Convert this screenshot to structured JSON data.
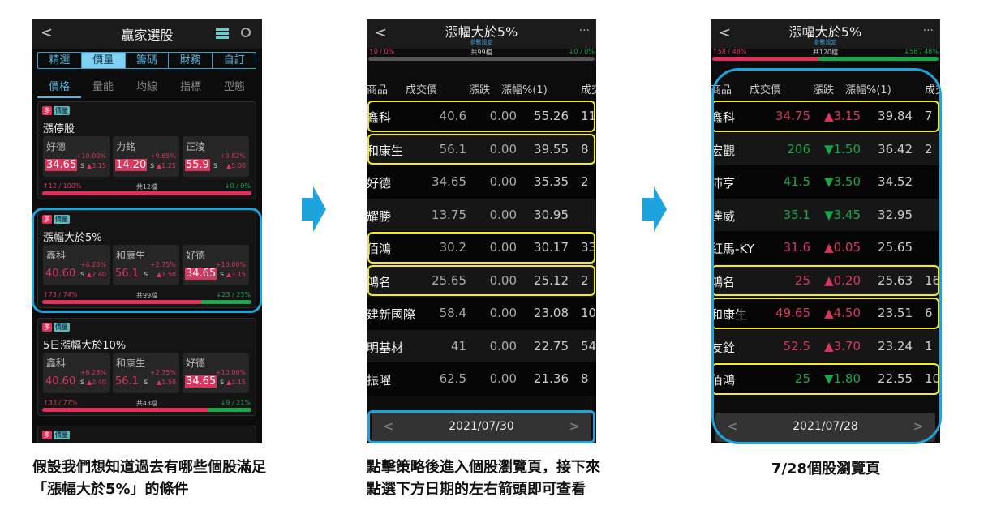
{
  "colors": {
    "up": "#d8365f",
    "down": "#1aa64a",
    "accent": "#3aa0c8",
    "highlight": "#f4ea1c",
    "annotation": "#1ea4dc"
  },
  "phone1": {
    "title": "贏家選股",
    "back": "<",
    "menu_icon": "list-icon",
    "search_icon": "search-icon",
    "tabs": [
      "精選",
      "價量",
      "籌碼",
      "財務",
      "自訂"
    ],
    "active_tab": 1,
    "subtabs": [
      "價格",
      "量能",
      "均線",
      "指標",
      "型態"
    ],
    "active_subtab": 0,
    "cards": [
      {
        "badge1": "多",
        "badge2": "價量",
        "title": "漲停股",
        "stocks": [
          {
            "name": "好德",
            "price": "34.65",
            "suffix": "s",
            "pct": "+10.00%",
            "chg": "▲3.15",
            "hl": true
          },
          {
            "name": "力銘",
            "price": "14.20",
            "suffix": "s",
            "pct": "+9.65%",
            "chg": "▲1.25",
            "hl": true
          },
          {
            "name": "正淩",
            "price": "55.9",
            "suffix": "s",
            "pct": "+9.82%",
            "chg": "▲5.00",
            "hl": true
          }
        ],
        "up": "↑12 / 100%",
        "total": "共12檔",
        "down": "↓0 / 0%",
        "up_ratio": 1.0
      },
      {
        "badge1": "多",
        "badge2": "價量",
        "title": "漲幅大於5%",
        "stocks": [
          {
            "name": "鑫科",
            "price": "40.60",
            "suffix": "s",
            "pct": "+6.28%",
            "chg": "▲2.40",
            "hl": false
          },
          {
            "name": "和康生",
            "price": "56.1",
            "suffix": "s",
            "pct": "+2.75%",
            "chg": "▲1.50",
            "hl": false
          },
          {
            "name": "好德",
            "price": "34.65",
            "suffix": "s",
            "pct": "+10.00%",
            "chg": "▲3.15",
            "hl": true
          }
        ],
        "up": "↑73 / 74%",
        "total": "共99檔",
        "down": "↓23 / 23%",
        "up_ratio": 0.74
      },
      {
        "badge1": "多",
        "badge2": "價量",
        "title": "5日漲幅大於10%",
        "stocks": [
          {
            "name": "鑫科",
            "price": "40.60",
            "suffix": "s",
            "pct": "+6.28%",
            "chg": "▲2.40",
            "hl": false
          },
          {
            "name": "和康生",
            "price": "56.1",
            "suffix": "s",
            "pct": "+2.75%",
            "chg": "▲1.50",
            "hl": false
          },
          {
            "name": "好德",
            "price": "34.65",
            "suffix": "s",
            "pct": "+10.00%",
            "chg": "▲3.15",
            "hl": true
          }
        ],
        "up": "↑33 / 77%",
        "total": "共43檔",
        "down": "↓9 / 21%",
        "up_ratio": 0.77
      },
      {
        "badge1": "多",
        "badge2": "價量"
      }
    ]
  },
  "phone2": {
    "title": "漲幅大於5%",
    "back": "<",
    "more": "···",
    "subtitle": "參數設定",
    "up": "↑0 / 0%",
    "total": "共99檔",
    "down": "↓0 / 0%",
    "columns": [
      "商品",
      "成交價",
      "漲跌",
      "漲幅%(1)",
      "成交"
    ],
    "rows": [
      {
        "name": "鑫科",
        "price": "40.6",
        "chg": "0.00",
        "pct": "55.26",
        "vol": "11",
        "hl": true,
        "dir": "flat"
      },
      {
        "name": "和康生",
        "price": "56.1",
        "chg": "0.00",
        "pct": "39.55",
        "vol": "8",
        "hl": true,
        "dir": "flat"
      },
      {
        "name": "好德",
        "price": "34.65",
        "chg": "0.00",
        "pct": "35.35",
        "vol": "2",
        "hl": false,
        "dir": "flat"
      },
      {
        "name": "耀勝",
        "price": "13.75",
        "chg": "0.00",
        "pct": "30.95",
        "vol": "",
        "hl": false,
        "dir": "flat"
      },
      {
        "name": "佰鴻",
        "price": "30.2",
        "chg": "0.00",
        "pct": "30.17",
        "vol": "33",
        "hl": true,
        "dir": "flat"
      },
      {
        "name": "鴻名",
        "price": "25.65",
        "chg": "0.00",
        "pct": "25.12",
        "vol": "2",
        "hl": true,
        "dir": "flat"
      },
      {
        "name": "建新國際",
        "price": "58.4",
        "chg": "0.00",
        "pct": "23.08",
        "vol": "10",
        "hl": false,
        "dir": "flat"
      },
      {
        "name": "明基材",
        "price": "41",
        "chg": "0.00",
        "pct": "22.75",
        "vol": "54",
        "hl": false,
        "dir": "flat"
      },
      {
        "name": "振曜",
        "price": "62.5",
        "chg": "0.00",
        "pct": "21.36",
        "vol": "8",
        "hl": false,
        "dir": "flat"
      }
    ],
    "date": "2021/07/30",
    "prev": "<",
    "next": ">"
  },
  "phone3": {
    "title": "漲幅大於5%",
    "back": "<",
    "more": "···",
    "subtitle": "參數設定",
    "up": "↑58 / 48%",
    "total": "共120檔",
    "down": "↓58 / 48%",
    "up_ratio": 0.48,
    "columns": [
      "商品",
      "成交價",
      "漲跌",
      "漲幅%(1)",
      "成交"
    ],
    "rows": [
      {
        "name": "鑫科",
        "price": "34.75",
        "chg": "▲3.15",
        "pct": "39.84",
        "vol": "7",
        "hl": true,
        "dir": "up"
      },
      {
        "name": "宏觀",
        "price": "206",
        "chg": "▼1.50",
        "pct": "36.42",
        "vol": "2",
        "hl": false,
        "dir": "down"
      },
      {
        "name": "沛亨",
        "price": "41.5",
        "chg": "▼3.50",
        "pct": "34.52",
        "vol": "",
        "hl": false,
        "dir": "down"
      },
      {
        "name": "達威",
        "price": "35.1",
        "chg": "▼3.45",
        "pct": "32.95",
        "vol": "",
        "hl": false,
        "dir": "down"
      },
      {
        "name": "紅馬-KY",
        "price": "31.6",
        "chg": "▲0.05",
        "pct": "25.65",
        "vol": "",
        "hl": false,
        "dir": "up"
      },
      {
        "name": "鴻名",
        "price": "25",
        "chg": "▲0.20",
        "pct": "25.63",
        "vol": "16",
        "hl": true,
        "dir": "up"
      },
      {
        "name": "和康生",
        "price": "49.65",
        "chg": "▲4.50",
        "pct": "23.51",
        "vol": "6",
        "hl": true,
        "dir": "up"
      },
      {
        "name": "友銓",
        "price": "52.5",
        "chg": "▲3.70",
        "pct": "23.24",
        "vol": "1",
        "hl": false,
        "dir": "up"
      },
      {
        "name": "佰鴻",
        "price": "25",
        "chg": "▼1.80",
        "pct": "22.55",
        "vol": "10",
        "hl": true,
        "dir": "down"
      }
    ],
    "date": "2021/07/28",
    "prev": "<",
    "next": ">"
  },
  "captions": [
    "假設我們想知道過去有哪些個股滿足「漲幅大於5%」的條件",
    "點擊策略後進入個股瀏覽頁，接下來點選下方日期的左右箭頭即可查看",
    "7/28個股瀏覽頁"
  ]
}
